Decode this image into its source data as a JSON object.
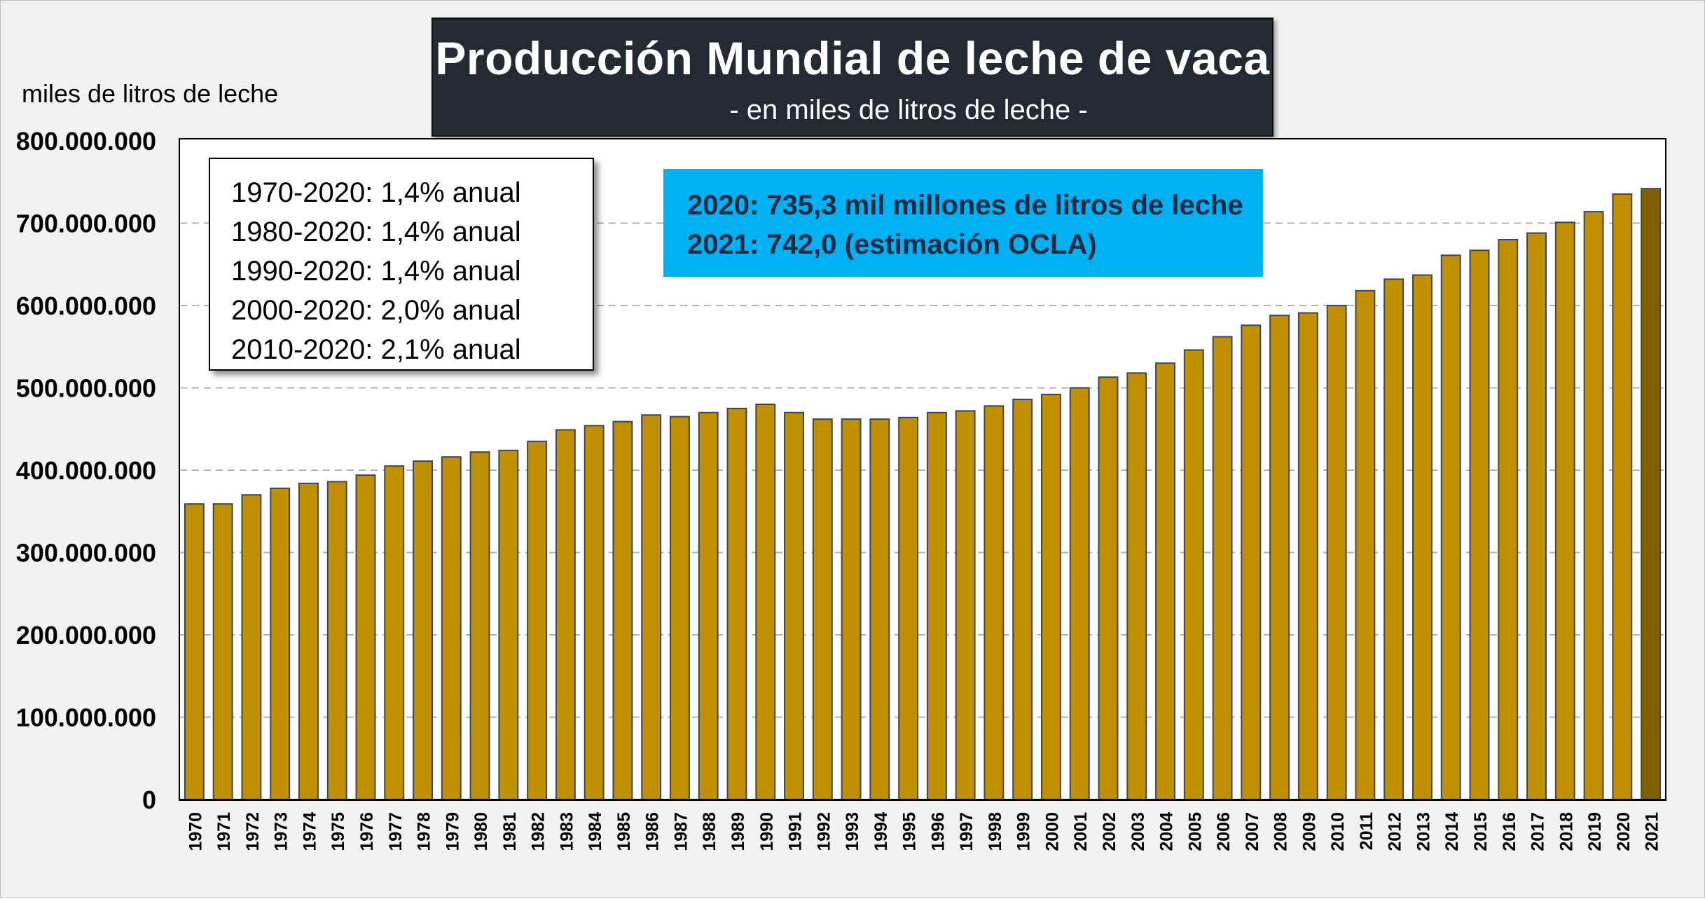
{
  "chart_data": {
    "type": "bar",
    "title": "Producción Mundial de leche de vaca",
    "subtitle": "- en miles de litros de leche -",
    "ylabel": "miles de litros de leche",
    "xlabel": "",
    "ylim": [
      0,
      800000000
    ],
    "yticks": [
      0,
      100000000,
      200000000,
      300000000,
      400000000,
      500000000,
      600000000,
      700000000,
      800000000
    ],
    "ytick_labels": [
      "0",
      "100.000.000",
      "200.000.000",
      "300.000.000",
      "400.000.000",
      "500.000.000",
      "600.000.000",
      "700.000.000",
      "800.000.000"
    ],
    "grid": "horizontal dashed",
    "categories": [
      "1970",
      "1971",
      "1972",
      "1973",
      "1974",
      "1975",
      "1976",
      "1977",
      "1978",
      "1979",
      "1980",
      "1981",
      "1982",
      "1983",
      "1984",
      "1985",
      "1986",
      "1987",
      "1988",
      "1989",
      "1990",
      "1991",
      "1992",
      "1993",
      "1994",
      "1995",
      "1996",
      "1997",
      "1998",
      "1999",
      "2000",
      "2001",
      "2002",
      "2003",
      "2004",
      "2005",
      "2006",
      "2007",
      "2008",
      "2009",
      "2010",
      "2011",
      "2012",
      "2013",
      "2014",
      "2015",
      "2016",
      "2017",
      "2018",
      "2019",
      "2020",
      "2021"
    ],
    "values": [
      359000000,
      359000000,
      370000000,
      378000000,
      384000000,
      386000000,
      394000000,
      405000000,
      411000000,
      416000000,
      422000000,
      424000000,
      435000000,
      449000000,
      454000000,
      459000000,
      467000000,
      465000000,
      470000000,
      475000000,
      480000000,
      470000000,
      462000000,
      462000000,
      462000000,
      464000000,
      470000000,
      472000000,
      478000000,
      486000000,
      492000000,
      500000000,
      513000000,
      518000000,
      530000000,
      546000000,
      562000000,
      576000000,
      588000000,
      591000000,
      600000000,
      618000000,
      632000000,
      637000000,
      661000000,
      667000000,
      680000000,
      688000000,
      701000000,
      714000000,
      735300000,
      742000000
    ],
    "bar_color": "#c09000",
    "highlight_color": "#806000",
    "highlight_categories": [
      "2021"
    ]
  },
  "rates_box": {
    "lines": [
      "1970-2020:  1,4% anual",
      "1980-2020:  1,4% anual",
      "1990-2020:  1,4% anual",
      "2000-2020:  2,0% anual",
      "2010-2020:  2,1% anual"
    ]
  },
  "info_box": {
    "line1": "2020:  735,3  mil millones de litros de leche",
    "line2": "2021:  742,0  (estimación OCLA)",
    "background": "#00b0f0"
  }
}
